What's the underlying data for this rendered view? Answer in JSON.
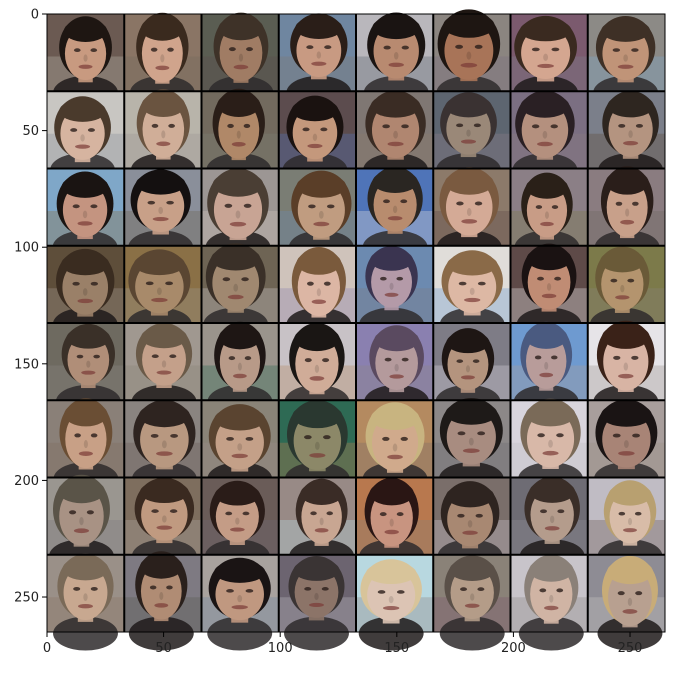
{
  "image": {
    "description_hidden": "",
    "grid_rows": 8,
    "grid_cols": 8,
    "x_range": [
      0,
      265
    ],
    "y_range": [
      0,
      265
    ],
    "x_ticks": [
      0,
      50,
      100,
      150,
      200,
      250
    ],
    "y_ticks": [
      0,
      50,
      100,
      150,
      200,
      250
    ],
    "x_tick_labels": [
      "0",
      "50",
      "100",
      "150",
      "200",
      "250"
    ],
    "y_tick_labels": [
      "0",
      "50",
      "100",
      "150",
      "200",
      "250"
    ],
    "colors": {
      "tile_palette": [
        "#6b5a52",
        "#8a7565",
        "#5a5d52",
        "#6f86a0",
        "#b9b7bc",
        "#8b8580",
        "#7b5a6e",
        "#8c8a86",
        "#c8c6c2",
        "#b8b4aa",
        "#726a5e",
        "#5c4c4e",
        "#7f7773",
        "#5d6570",
        "#7b6f82",
        "#7b7f8a",
        "#7fa7c8",
        "#8a8f9a",
        "#9c9694",
        "#7a7d74",
        "#4f74b8",
        "#8c7a6a",
        "#8b7f86",
        "#8a7c80",
        "#5e4e3a",
        "#8a7046",
        "#6e6454",
        "#cfc3bb",
        "#6c8ab0",
        "#e0ddd9",
        "#5e4a48",
        "#7c7a4a",
        "#6e6a60",
        "#a09890",
        "#9a948c",
        "#c8c2c6",
        "#8a80b0",
        "#7e7c86",
        "#6e9ad0",
        "#e6e4e8",
        "#8a8078",
        "#8a8480",
        "#8a8478",
        "#2e6a54",
        "#b48a60",
        "#8c8888",
        "#d8d4dc",
        "#a89e9c",
        "#9a9690",
        "#7e6e5e",
        "#6a5c58",
        "#988a86",
        "#b8784e",
        "#7a6e6a",
        "#6e6c74",
        "#c0bcc4",
        "#9a9088",
        "#7e7a82",
        "#a8a29e",
        "#6c6470",
        "#b8d8e0",
        "#8a8278",
        "#c8c4ca",
        "#8e8c94"
      ],
      "face_palette": [
        "#c89a80",
        "#d0a48c",
        "#a07c64",
        "#c89a82",
        "#b88a70",
        "#a87458",
        "#d4a690",
        "#c09478",
        "#d6b4a0",
        "#d0ae98",
        "#b08868",
        "#c4987c",
        "#b08670",
        "#9a8878",
        "#b4907e",
        "#b49480",
        "#c49480",
        "#c8a088",
        "#c8a494",
        "#c09c80",
        "#b88c6e",
        "#d4aa96",
        "#c89c86",
        "#c8a08a",
        "#9a8068",
        "#a88a6a",
        "#a08870",
        "#dcb6a4",
        "#b49aa8",
        "#ddb8a4",
        "#c08c74",
        "#b4946e",
        "#b08e78",
        "#c4a08a",
        "#b89a88",
        "#d0ac98",
        "#b49a9c",
        "#b4947e",
        "#b89c9a",
        "#d8b4a4",
        "#c8a086",
        "#b89880",
        "#c4a088",
        "#8c8868",
        "#d0aa8c",
        "#a88c80",
        "#d8b8a8",
        "#a88476",
        "#a89284",
        "#c09a80",
        "#c49c86",
        "#c8a692",
        "#c89480",
        "#a88872",
        "#b49c8c",
        "#d8bca8",
        "#c8a890",
        "#b08c74",
        "#c09880",
        "#8c7468",
        "#dcc4b4",
        "#b49c88",
        "#d0b4a4",
        "#b8a090"
      ],
      "hair_palette": [
        "#1e1612",
        "#3a2a1e",
        "#3e3228",
        "#2a1e18",
        "#1a1412",
        "#1e1612",
        "#3a2a20",
        "#3e3026",
        "#4a3a2c",
        "#6a5440",
        "#2a1e18",
        "#1a1210",
        "#3a2c24",
        "#3a3232",
        "#2a2024",
        "#2e2620",
        "#1a1412",
        "#141010",
        "#4a3e34",
        "#5a3e28",
        "#2a2622",
        "#7a5a40",
        "#2a2018",
        "#2a1e1a",
        "#3a2c20",
        "#5a4632",
        "#3a3028",
        "#7a5a3c",
        "#3a3450",
        "#8a6a48",
        "#1a1212",
        "#6a5a38",
        "#3a3028",
        "#6a5a48",
        "#1e1614",
        "#1a1614",
        "#5a4a60",
        "#1e1614",
        "#4a5a80",
        "#3a2218",
        "#6a4e34",
        "#2e2420",
        "#5a4430",
        "#2a3830",
        "#c8b480",
        "#1e1a18",
        "#7a6a58",
        "#1a1414",
        "#5a5448",
        "#3a2a20",
        "#2a1c18",
        "#3a2c26",
        "#2a1614",
        "#2e2420",
        "#3a2e28",
        "#b8a070",
        "#7a6a58",
        "#2a201c",
        "#1a1414",
        "#3a3434",
        "#d8c49a",
        "#5a5048",
        "#8a8078",
        "#c8ac78"
      ]
    }
  }
}
